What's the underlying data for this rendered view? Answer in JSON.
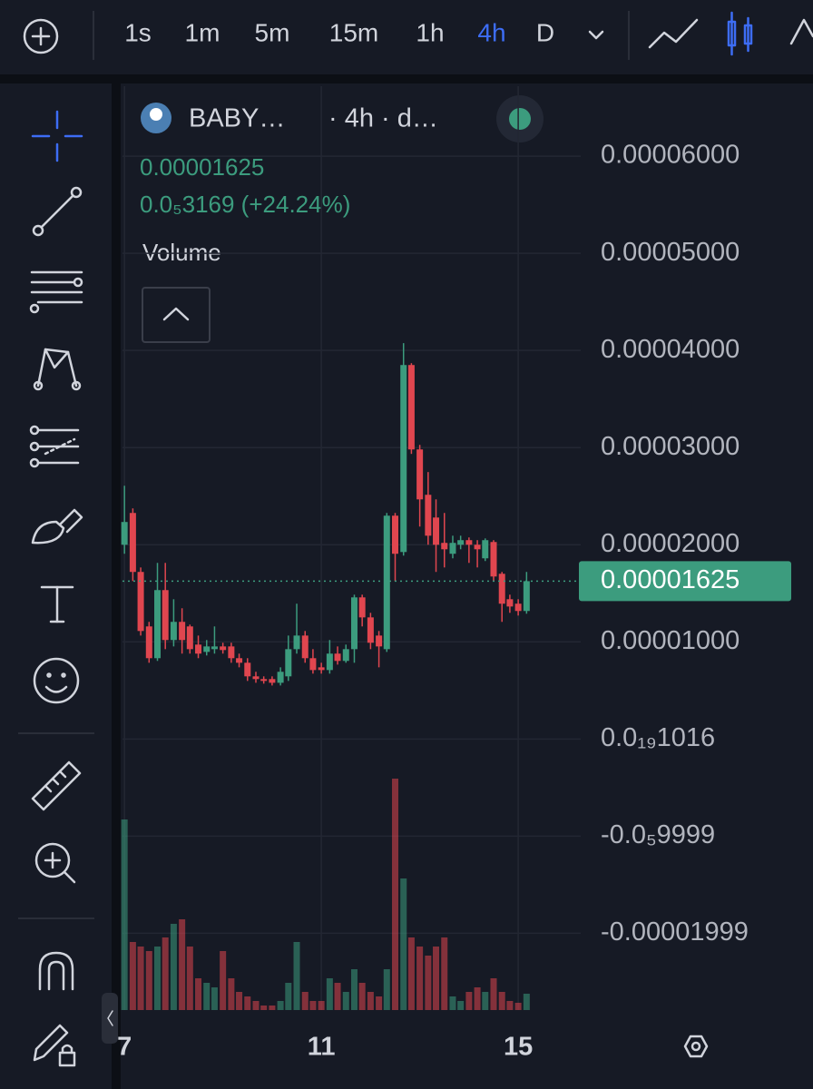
{
  "toolbar": {
    "timeframes": [
      "1s",
      "1m",
      "5m",
      "15m",
      "1h",
      "4h",
      "D"
    ],
    "active_timeframe": 5
  },
  "chart_data": {
    "type": "candlestick",
    "title": "BABY…",
    "subtitle": "· 4h · d…",
    "last_price": 1.625e-05,
    "change": "0.0₅3169 (+24.24%)",
    "volume_label": "Volume",
    "up_color": "#3c9c7e",
    "down_color": "#e0464f",
    "grid": true,
    "x": [
      7,
      7.17,
      7.33,
      7.5,
      7.67,
      7.83,
      8,
      8.17,
      8.33,
      8.5,
      8.67,
      8.83,
      9,
      9.17,
      9.33,
      9.5,
      9.67,
      9.83,
      10,
      10.17,
      10.33,
      10.5,
      10.67,
      10.83,
      11,
      11.17,
      11.33,
      11.5,
      11.67,
      11.83,
      12,
      12.17,
      12.33,
      12.5,
      12.67,
      12.83,
      13,
      13.17,
      13.33,
      13.5,
      13.67,
      13.83,
      14,
      14.17,
      14.33,
      14.5,
      14.67,
      14.83,
      15,
      15.17
    ],
    "open": [
      2e-05,
      2.327e-05,
      1.72e-05,
      1.159e-05,
      8.32e-06,
      1.533e-05,
      1.019e-05,
      1.206e-05,
      1.159e-05,
      9.72e-06,
      8.97e-06,
      9.25e-06,
      9.53e-06,
      9.53e-06,
      8.32e-06,
      7.85e-06,
      6.45e-06,
      6.17e-06,
      6.17e-06,
      5.79e-06,
      6.45e-06,
      9.25e-06,
      1.065e-05,
      8.32e-06,
      7.38e-06,
      7.1e-06,
      8.79e-06,
      8.04e-06,
      9.25e-06,
      1.458e-05,
      1.252e-05,
      1.065e-05,
      9.25e-06,
      2.299e-05,
      1.925e-05,
      3.85e-05,
      2.981e-05,
      2.514e-05,
      2.28e-05,
      2.019e-05,
      1.907e-05,
      2e-05,
      2.047e-05,
      2e-05,
      1.86e-05,
      2.028e-05,
      1.701e-05,
      1.439e-05,
      1.393e-05,
      1.318e-05
    ],
    "high": [
      2.607e-05,
      2.374e-05,
      1.766e-05,
      1.206e-05,
      1.813e-05,
      1.813e-05,
      1.439e-05,
      1.346e-05,
      1.178e-05,
      1.065e-05,
      1.019e-05,
      1.159e-05,
      9.91e-06,
      9.91e-06,
      8.79e-06,
      8.32e-06,
      6.92e-06,
      6.45e-06,
      6.45e-06,
      7.38e-06,
      1.065e-05,
      1.393e-05,
      1.112e-05,
      9.25e-06,
      7.85e-06,
      1.019e-05,
      9.53e-06,
      9.72e-06,
      1.486e-05,
      1.486e-05,
      1.299e-05,
      1.112e-05,
      2.327e-05,
      2.327e-05,
      4.075e-05,
      3.869e-05,
      3.028e-05,
      2.748e-05,
      2.467e-05,
      2.327e-05,
      2.093e-05,
      2.093e-05,
      2.075e-05,
      2.047e-05,
      2.065e-05,
      2.047e-05,
      1.72e-05,
      1.486e-05,
      1.439e-05,
      1.72e-05
    ],
    "low": [
      1.907e-05,
      1.626e-05,
      1.065e-05,
      7.85e-06,
      8.04e-06,
      9.25e-06,
      9.53e-06,
      8.79e-06,
      8.79e-06,
      8.32e-06,
      8.6e-06,
      8.79e-06,
      8.79e-06,
      7.85e-06,
      7.38e-06,
      5.98e-06,
      5.79e-06,
      5.7e-06,
      5.51e-06,
      5.51e-06,
      5.98e-06,
      8.79e-06,
      7.85e-06,
      6.73e-06,
      6.73e-06,
      6.73e-06,
      7.66e-06,
      7.85e-06,
      7.85e-06,
      1.159e-05,
      9.25e-06,
      7.38e-06,
      8.97e-06,
      1.626e-05,
      1.888e-05,
      2.935e-05,
      2.187e-05,
      2e-05,
      1.72e-05,
      1.766e-05,
      1.86e-05,
      1.953e-05,
      1.813e-05,
      1.766e-05,
      1.832e-05,
      1.626e-05,
      1.206e-05,
      1.299e-05,
      1.271e-05,
      1.29e-05
    ],
    "close": [
      2.234e-05,
      1.72e-05,
      1.112e-05,
      8.32e-06,
      1.533e-05,
      1.019e-05,
      1.206e-05,
      1.019e-05,
      9.25e-06,
      8.79e-06,
      9.53e-06,
      9.53e-06,
      9.16e-06,
      8.32e-06,
      7.85e-06,
      6.45e-06,
      6.17e-06,
      5.98e-06,
      5.79e-06,
      6.92e-06,
      9.25e-06,
      1.065e-05,
      8.32e-06,
      7.1e-06,
      7.1e-06,
      8.79e-06,
      8.04e-06,
      9.25e-06,
      1.458e-05,
      1.252e-05,
      9.91e-06,
      9.53e-06,
      2.299e-05,
      1.907e-05,
      3.85e-05,
      2.981e-05,
      2.467e-05,
      2.093e-05,
      2e-05,
      1.953e-05,
      2.019e-05,
      2.047e-05,
      2e-05,
      1.953e-05,
      2.047e-05,
      1.673e-05,
      1.393e-05,
      1.364e-05,
      1.318e-05,
      1.625e-05
    ],
    "volume": [
      210,
      75,
      70,
      65,
      70,
      80,
      95,
      100,
      70,
      35,
      30,
      25,
      65,
      35,
      20,
      15,
      10,
      5,
      5,
      10,
      30,
      75,
      20,
      10,
      10,
      35,
      30,
      20,
      45,
      30,
      20,
      15,
      45,
      255,
      145,
      80,
      70,
      60,
      70,
      80,
      15,
      10,
      20,
      25,
      20,
      35,
      20,
      10,
      8,
      18
    ],
    "volume_lim": [
      0,
      255
    ],
    "xlim": [
      6.96,
      16.27
    ],
    "xticks": [
      7,
      11,
      15
    ],
    "ylim": [
      -2.79e-05,
      6.72e-05
    ],
    "yticks": [
      {
        "value": 6e-05,
        "label": "0.00006000"
      },
      {
        "value": 5e-05,
        "label": "0.00005000"
      },
      {
        "value": 4e-05,
        "label": "0.00004000"
      },
      {
        "value": 3e-05,
        "label": "0.00003000"
      },
      {
        "value": 2e-05,
        "label": "0.00002000"
      },
      {
        "value": 1e-05,
        "label": "0.00001000"
      },
      {
        "value": 1.016e-20,
        "label": "0.0₁₉1016"
      },
      {
        "value": -9.999e-06,
        "label": "-0.0₅9999"
      },
      {
        "value": -1.999e-05,
        "label": "-0.00001999"
      }
    ]
  }
}
